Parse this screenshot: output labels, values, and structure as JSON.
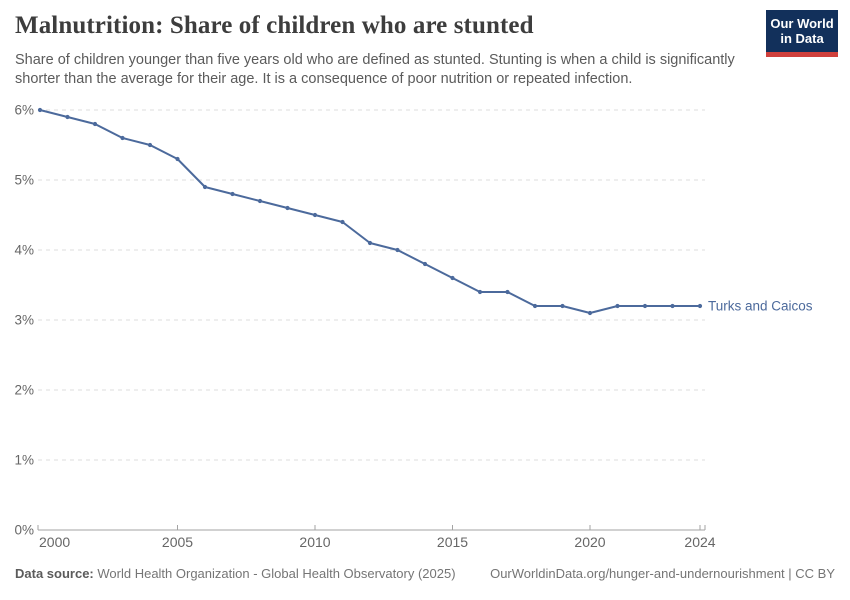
{
  "header": {
    "title": "Malnutrition: Share of children who are stunted",
    "subtitle": "Share of children younger than five years old who are defined as stunted. Stunting is when a child is significantly shorter than the average for their age. It is a consequence of poor nutrition or repeated infection.",
    "logo": {
      "line1": "Our World",
      "line2": "in Data"
    }
  },
  "chart_data": {
    "type": "line",
    "title": "Malnutrition: Share of children who are stunted",
    "xlabel": "",
    "ylabel": "",
    "xlim": [
      2000,
      2024
    ],
    "ylim": [
      0,
      6
    ],
    "grid": "horizontal-dashed",
    "legend_position": "end-of-line-label",
    "x_ticks": [
      2000,
      2005,
      2010,
      2015,
      2020,
      2024
    ],
    "y_ticks": [
      "0%",
      "1%",
      "2%",
      "3%",
      "4%",
      "5%",
      "6%"
    ],
    "series": [
      {
        "name": "Turks and Caicos",
        "color": "#4C6A9C",
        "x": [
          2000,
          2001,
          2002,
          2003,
          2004,
          2005,
          2006,
          2007,
          2008,
          2009,
          2010,
          2011,
          2012,
          2013,
          2014,
          2015,
          2016,
          2017,
          2018,
          2019,
          2020,
          2021,
          2022,
          2023,
          2024
        ],
        "values": [
          6.0,
          5.9,
          5.8,
          5.6,
          5.5,
          5.3,
          4.9,
          4.8,
          4.7,
          4.6,
          4.5,
          4.4,
          4.1,
          4.0,
          3.8,
          3.6,
          3.4,
          3.4,
          3.2,
          3.2,
          3.1,
          3.2,
          3.2,
          3.2,
          3.2
        ]
      }
    ],
    "colors": {
      "gridline": "#dedede",
      "axis": "#a3a3a3",
      "tick_label": "#666666"
    }
  },
  "footer": {
    "data_source_label": "Data source:",
    "data_source_text": "World Health Organization - Global Health Observatory (2025)",
    "url_license": "OurWorldinData.org/hunger-and-undernourishment | CC BY"
  }
}
